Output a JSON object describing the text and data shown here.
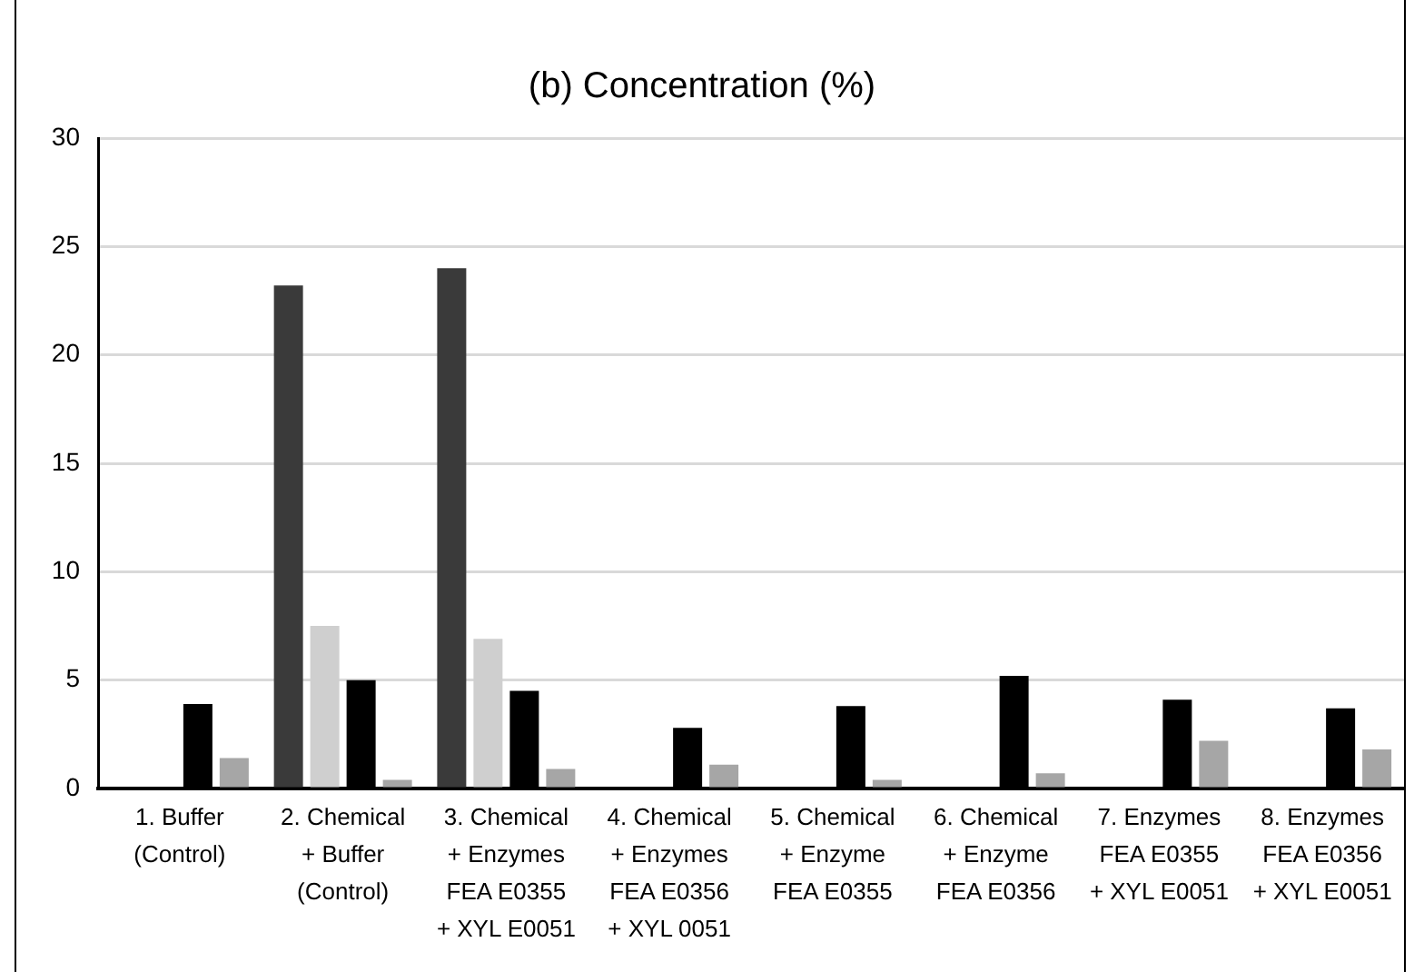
{
  "chart_data": {
    "type": "bar",
    "title": "(b) Concentration (%)",
    "categories": [
      "1. Buffer\n(Control)",
      "2. Chemical\n+ Buffer\n(Control)",
      "3. Chemical\n+ Enzymes\nFEA E0355\n+ XYL E0051",
      "4. Chemical\n+ Enzymes\nFEA E0356\n+ XYL 0051",
      "5. Chemical\n+ Enzyme\nFEA E0355",
      "6. Chemical\n+ Enzyme\nFEA E0356",
      "7. Enzymes\nFEA E0355\n+ XYL E0051",
      "8. Enzymes\nFEA E0356\n+ XYL E0051"
    ],
    "series": [
      {
        "color": "#3a3a3a",
        "values": [
          null,
          23.2,
          24.0,
          null,
          null,
          null,
          null,
          null
        ]
      },
      {
        "color": "#cfcfcf",
        "values": [
          null,
          7.5,
          6.9,
          null,
          null,
          null,
          null,
          null
        ]
      },
      {
        "color": "#000000",
        "values": [
          3.9,
          5.0,
          4.5,
          2.8,
          3.8,
          5.2,
          4.1,
          3.7
        ]
      },
      {
        "color": "#a6a6a6",
        "values": [
          1.4,
          0.4,
          0.9,
          1.1,
          0.4,
          0.7,
          2.2,
          1.8
        ]
      }
    ],
    "ylim": [
      0,
      30
    ],
    "yticks": [
      0,
      5,
      10,
      15,
      20,
      25,
      30
    ],
    "grid": "y",
    "legend": false
  }
}
